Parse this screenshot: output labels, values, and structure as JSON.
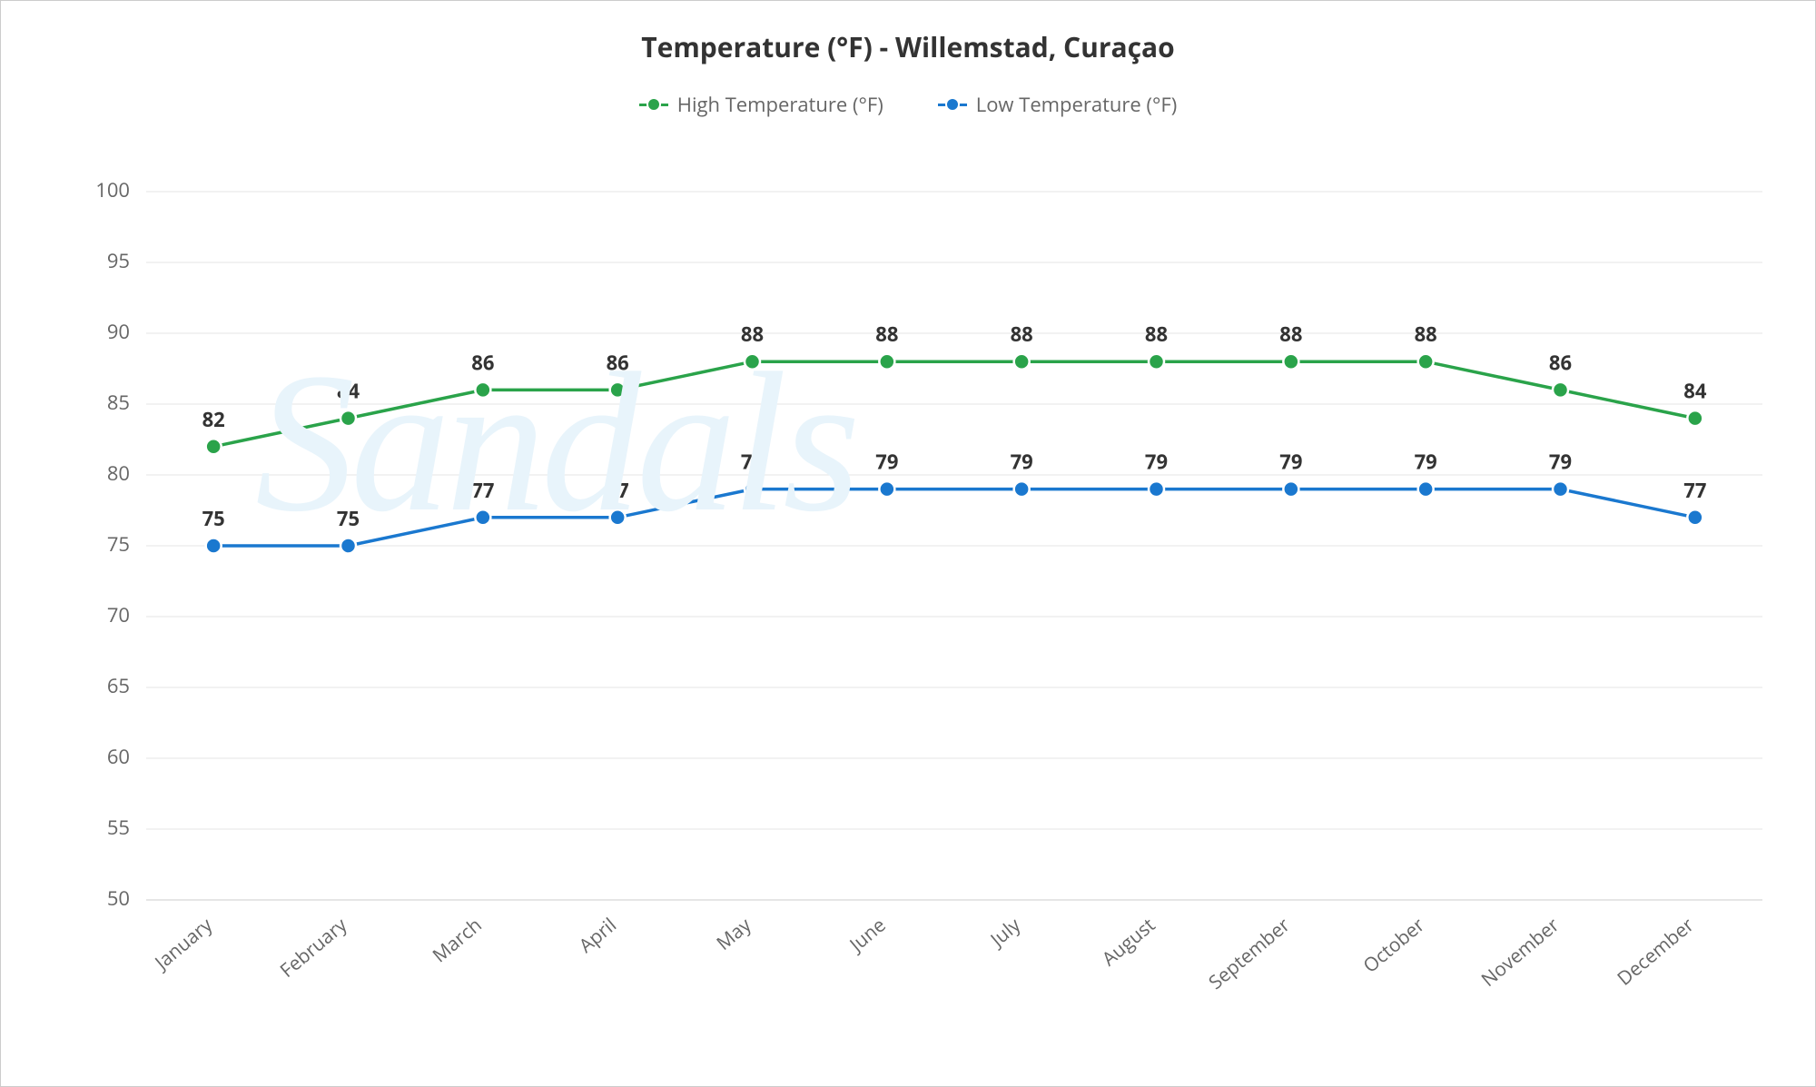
{
  "chart": {
    "type": "line",
    "title": "Temperature (°F) - Willemstad, Curaçao",
    "title_fontsize": 30,
    "title_color": "#333333",
    "background_color": "#ffffff",
    "border_color": "#cccccc",
    "grid_color": "#e6e6e6",
    "axis_color": "#cccccc",
    "tick_label_color": "#666666",
    "tick_label_fontsize": 22,
    "data_label_fontsize": 22,
    "data_label_color": "#333333",
    "watermark_text": "Sandals",
    "watermark_color": "#e8f4fb",
    "categories": [
      "January",
      "February",
      "March",
      "April",
      "May",
      "June",
      "July",
      "August",
      "September",
      "October",
      "November",
      "December"
    ],
    "ylim": [
      50,
      100
    ],
    "ytick_step": 5,
    "line_width": 3.5,
    "marker_radius": 8.5,
    "marker_stroke": "#ffffff",
    "series": [
      {
        "name": "High Temperature (°F)",
        "color": "#2aa34a",
        "values": [
          82,
          84,
          86,
          86,
          88,
          88,
          88,
          88,
          88,
          88,
          86,
          84
        ]
      },
      {
        "name": "Low Temperature (°F)",
        "color": "#1a78cf",
        "values": [
          75,
          75,
          77,
          77,
          79,
          79,
          79,
          79,
          79,
          79,
          79,
          77
        ]
      }
    ],
    "legend_fontsize": 22,
    "legend_color": "#666666"
  }
}
